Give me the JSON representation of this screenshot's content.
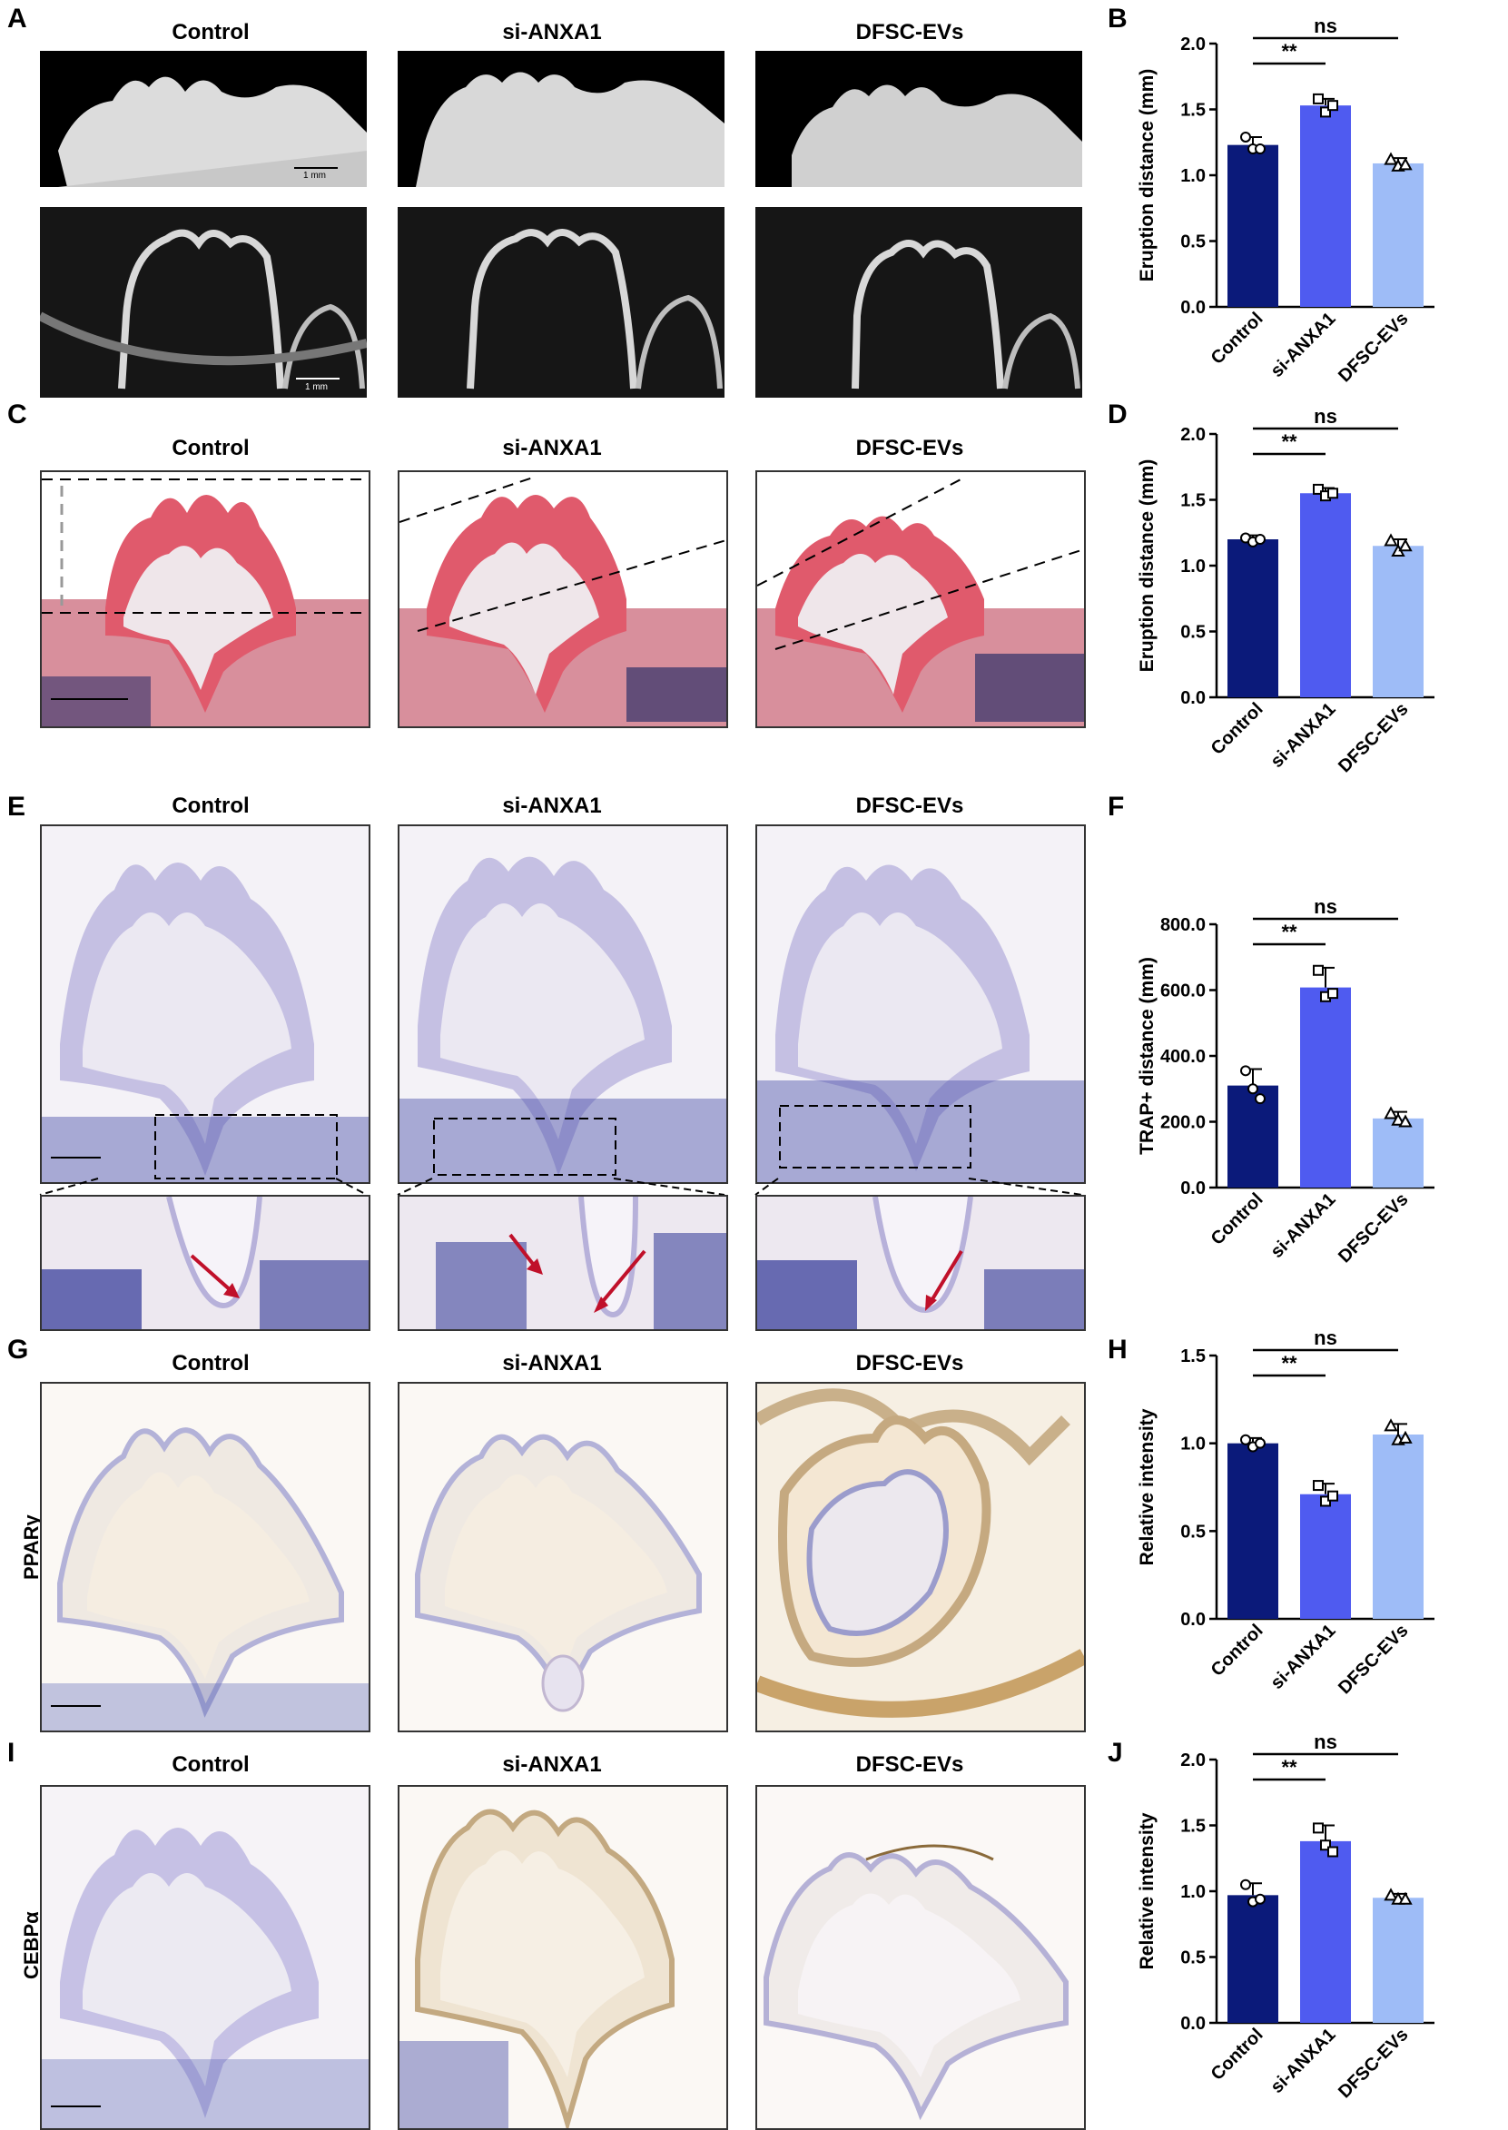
{
  "panels": {
    "A": {
      "label": "A",
      "columns": [
        "Control",
        "si-ANXA1",
        "DFSC-EVs"
      ],
      "scale_bar_top": "1 mm",
      "scale_bar_bottom": "1 mm"
    },
    "B": {
      "label": "B"
    },
    "C": {
      "label": "C",
      "columns": [
        "Control",
        "si-ANXA1",
        "DFSC-EVs"
      ]
    },
    "D": {
      "label": "D"
    },
    "E": {
      "label": "E",
      "columns": [
        "Control",
        "si-ANXA1",
        "DFSC-EVs"
      ]
    },
    "F": {
      "label": "F"
    },
    "G": {
      "label": "G",
      "columns": [
        "Control",
        "si-ANXA1",
        "DFSC-EVs"
      ],
      "row_label": "PPARγ"
    },
    "H": {
      "label": "H"
    },
    "I": {
      "label": "I",
      "columns": [
        "Control",
        "si-ANXA1",
        "DFSC-EVs"
      ],
      "row_label": "CEBPα"
    },
    "J": {
      "label": "J"
    }
  },
  "colors": {
    "control": "#0b1a7a",
    "si_anxa1": "#4f5bf0",
    "dfsc_evs": "#9ebcf7"
  },
  "chart_data": [
    {
      "id": "B",
      "type": "bar",
      "categories": [
        "Control",
        "si-ANXA1",
        "DFSC-EVs"
      ],
      "values": [
        1.23,
        1.53,
        1.09
      ],
      "errors": [
        0.06,
        0.05,
        0.04
      ],
      "points": [
        [
          1.29,
          1.2,
          1.2
        ],
        [
          1.58,
          1.48,
          1.53
        ],
        [
          1.12,
          1.07,
          1.08
        ]
      ],
      "ylabel": "Eruption distance (mm)",
      "ylim": [
        0,
        2.0
      ],
      "yticks": [
        "0.0",
        "0.5",
        "1.0",
        "1.5",
        "2.0"
      ],
      "sig": [
        {
          "from": 0,
          "to": 1,
          "text": "**"
        },
        {
          "from": 0,
          "to": 2,
          "text": "ns"
        }
      ],
      "markers": [
        "circle",
        "square",
        "triangle"
      ]
    },
    {
      "id": "D",
      "type": "bar",
      "categories": [
        "Control",
        "si-ANXA1",
        "DFSC-EVs"
      ],
      "values": [
        1.2,
        1.55,
        1.15
      ],
      "errors": [
        0.03,
        0.04,
        0.05
      ],
      "points": [
        [
          1.21,
          1.18,
          1.2
        ],
        [
          1.58,
          1.53,
          1.55
        ],
        [
          1.19,
          1.11,
          1.15
        ]
      ],
      "ylabel": "Eruption distance (mm)",
      "ylim": [
        0,
        2.0
      ],
      "yticks": [
        "0.0",
        "0.5",
        "1.0",
        "1.5",
        "2.0"
      ],
      "sig": [
        {
          "from": 0,
          "to": 1,
          "text": "**"
        },
        {
          "from": 0,
          "to": 2,
          "text": "ns"
        }
      ],
      "markers": [
        "circle",
        "square",
        "triangle"
      ]
    },
    {
      "id": "F",
      "type": "bar",
      "categories": [
        "Control",
        "si-ANXA1",
        "DFSC-EVs"
      ],
      "values": [
        310,
        608,
        210
      ],
      "errors": [
        50,
        60,
        20
      ],
      "points": [
        [
          355,
          300,
          270
        ],
        [
          660,
          580,
          590
        ],
        [
          225,
          205,
          200
        ]
      ],
      "ylabel": "TRAP+ distance (mm)",
      "ylim": [
        0,
        800
      ],
      "yticks": [
        "0.0",
        "200.0",
        "400.0",
        "600.0",
        "800.0"
      ],
      "sig": [
        {
          "from": 0,
          "to": 1,
          "text": "**"
        },
        {
          "from": 0,
          "to": 2,
          "text": "ns"
        }
      ],
      "markers": [
        "circle",
        "square",
        "triangle"
      ]
    },
    {
      "id": "H",
      "type": "bar",
      "categories": [
        "Control",
        "si-ANXA1",
        "DFSC-EVs"
      ],
      "values": [
        1.0,
        0.71,
        1.05
      ],
      "errors": [
        0.03,
        0.06,
        0.06
      ],
      "points": [
        [
          1.02,
          0.98,
          1.0
        ],
        [
          0.76,
          0.67,
          0.7
        ],
        [
          1.1,
          1.02,
          1.03
        ]
      ],
      "ylabel": "Relative intensity",
      "ylim": [
        0,
        1.5
      ],
      "yticks": [
        "0.0",
        "0.5",
        "1.0",
        "1.5"
      ],
      "sig": [
        {
          "from": 0,
          "to": 1,
          "text": "**"
        },
        {
          "from": 0,
          "to": 2,
          "text": "ns"
        }
      ],
      "markers": [
        "circle",
        "square",
        "triangle"
      ]
    },
    {
      "id": "J",
      "type": "bar",
      "categories": [
        "Control",
        "si-ANXA1",
        "DFSC-EVs"
      ],
      "values": [
        0.97,
        1.38,
        0.95
      ],
      "errors": [
        0.09,
        0.12,
        0.03
      ],
      "points": [
        [
          1.05,
          0.92,
          0.94
        ],
        [
          1.48,
          1.35,
          1.3
        ],
        [
          0.97,
          0.94,
          0.94
        ]
      ],
      "ylabel": "Relative intensity",
      "ylim": [
        0,
        2.0
      ],
      "yticks": [
        "0.0",
        "0.5",
        "1.0",
        "1.5",
        "2.0"
      ],
      "sig": [
        {
          "from": 0,
          "to": 1,
          "text": "**"
        },
        {
          "from": 0,
          "to": 2,
          "text": "ns"
        }
      ],
      "markers": [
        "circle",
        "square",
        "triangle"
      ]
    }
  ]
}
